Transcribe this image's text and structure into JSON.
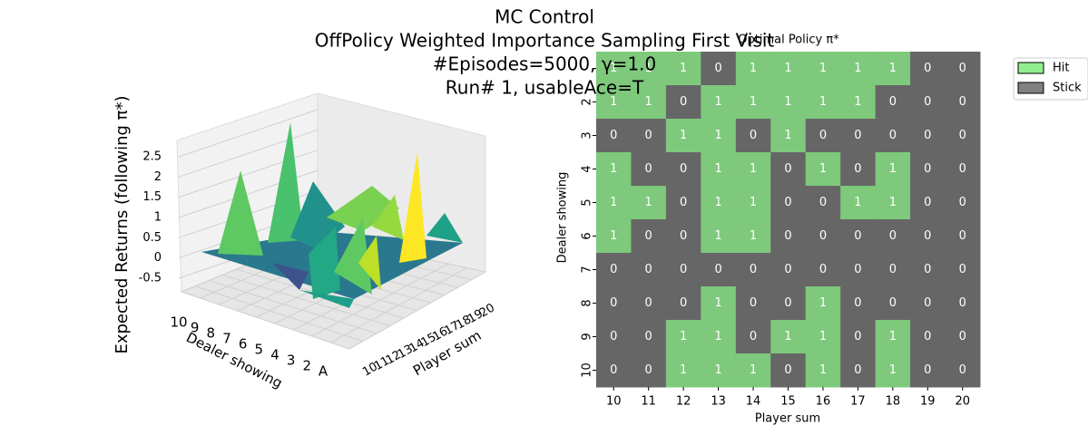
{
  "suptitle": [
    "MC Control",
    "OffPolicy Weighted Importance Sampling First Visit",
    "#Episodes=5000, γ=1.0",
    "Run# 1, usableAce=T"
  ],
  "chart_data": [
    {
      "type": "surface3d",
      "zlabel": "Expected Returns (following π*)",
      "ylabel": "Dealer showing",
      "xlabel": "Player sum",
      "xticks": [
        10,
        11,
        12,
        13,
        14,
        15,
        16,
        17,
        18,
        19,
        20
      ],
      "yticks": [
        "10",
        "9",
        "8",
        "7",
        "6",
        "5",
        "4",
        "3",
        "2",
        "A"
      ],
      "zlim": [
        -0.5,
        2.5
      ],
      "zticks": [
        -0.5,
        0.0,
        0.5,
        1.0,
        1.5,
        2.0,
        2.5
      ]
    },
    {
      "type": "heatmap",
      "title": "Optimal Policy π*",
      "xlabel": "Player sum",
      "ylabel": "Dealer showing",
      "x": [
        "10",
        "11",
        "12",
        "13",
        "14",
        "15",
        "16",
        "17",
        "18",
        "19",
        "20"
      ],
      "y": [
        null,
        "2",
        "3",
        "4",
        "5",
        "6",
        "7",
        "8",
        "9",
        "10"
      ],
      "values": [
        [
          1,
          1,
          1,
          0,
          1,
          1,
          1,
          1,
          1,
          0,
          0
        ],
        [
          1,
          1,
          0,
          1,
          1,
          1,
          1,
          1,
          0,
          0,
          0
        ],
        [
          0,
          0,
          1,
          1,
          0,
          1,
          0,
          0,
          0,
          0,
          0
        ],
        [
          1,
          0,
          0,
          1,
          1,
          0,
          1,
          0,
          1,
          0,
          0
        ],
        [
          1,
          1,
          0,
          1,
          1,
          0,
          0,
          1,
          1,
          0,
          0
        ],
        [
          1,
          0,
          0,
          1,
          1,
          0,
          0,
          0,
          0,
          0,
          0
        ],
        [
          0,
          0,
          0,
          0,
          0,
          0,
          0,
          0,
          0,
          0,
          0
        ],
        [
          0,
          0,
          0,
          1,
          0,
          0,
          1,
          0,
          0,
          0,
          0
        ],
        [
          0,
          0,
          1,
          1,
          0,
          1,
          1,
          0,
          1,
          0,
          0
        ],
        [
          0,
          0,
          1,
          1,
          1,
          0,
          1,
          0,
          1,
          0,
          0
        ]
      ],
      "cell_colors": [
        "#666666",
        "#7ec97c"
      ],
      "legend": [
        {
          "name": "Hit",
          "color": "#90ee90"
        },
        {
          "name": "Stick",
          "color": "#808080"
        }
      ],
      "legend_position": "outside-upper-right"
    }
  ]
}
